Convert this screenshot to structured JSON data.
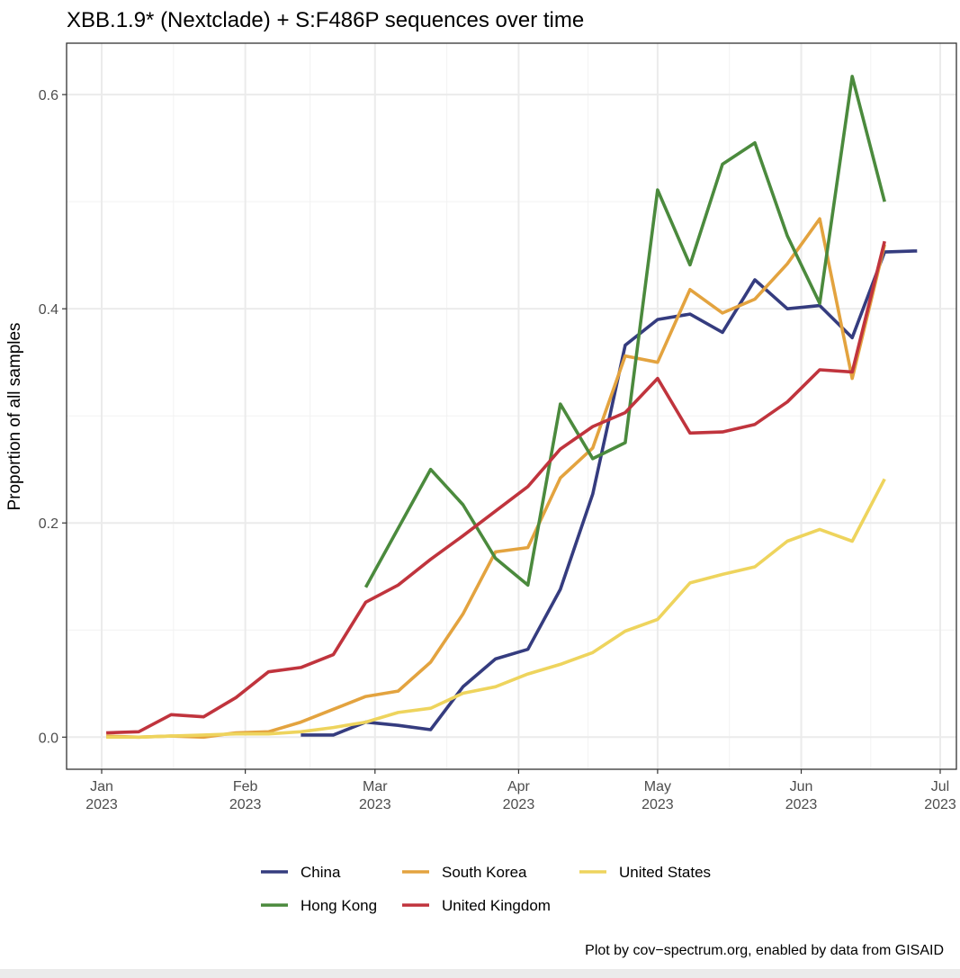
{
  "chart_data": {
    "type": "line",
    "title": "XBB.1.9* (Nextclade) + S:F486P sequences over time",
    "ylabel": "Proportion of all samples",
    "xlabel": "",
    "x_range": [
      "2023-01-01",
      "2023-07-01"
    ],
    "ylim": [
      -0.03,
      0.648
    ],
    "y_ticks": [
      0.0,
      0.2,
      0.4,
      0.6
    ],
    "y_tick_labels": [
      "0.0",
      "0.2",
      "0.4",
      "0.6"
    ],
    "x_ticks": [
      {
        "date": "2023-01-01",
        "month": "Jan",
        "year": "2023"
      },
      {
        "date": "2023-02-01",
        "month": "Feb",
        "year": "2023"
      },
      {
        "date": "2023-03-01",
        "month": "Mar",
        "year": "2023"
      },
      {
        "date": "2023-04-01",
        "month": "Apr",
        "year": "2023"
      },
      {
        "date": "2023-05-01",
        "month": "May",
        "year": "2023"
      },
      {
        "date": "2023-06-01",
        "month": "Jun",
        "year": "2023"
      },
      {
        "date": "2023-07-01",
        "month": "Jul",
        "year": "2023"
      }
    ],
    "grid": true,
    "legend_position": "bottom",
    "series": [
      {
        "name": "China",
        "color": "#353c7f",
        "points": [
          [
            "2023-02-13",
            0.002
          ],
          [
            "2023-02-20",
            0.002
          ],
          [
            "2023-02-27",
            0.014
          ],
          [
            "2023-03-06",
            0.011
          ],
          [
            "2023-03-13",
            0.007
          ],
          [
            "2023-03-20",
            0.047
          ],
          [
            "2023-03-27",
            0.073
          ],
          [
            "2023-04-03",
            0.082
          ],
          [
            "2023-04-10",
            0.138
          ],
          [
            "2023-04-17",
            0.227
          ],
          [
            "2023-04-24",
            0.366
          ],
          [
            "2023-05-01",
            0.39
          ],
          [
            "2023-05-08",
            0.395
          ],
          [
            "2023-05-15",
            0.378
          ],
          [
            "2023-05-22",
            0.427
          ],
          [
            "2023-05-29",
            0.4
          ],
          [
            "2023-06-05",
            0.403
          ],
          [
            "2023-06-12",
            0.373
          ],
          [
            "2023-06-19",
            0.453
          ],
          [
            "2023-06-26",
            0.454
          ]
        ]
      },
      {
        "name": "South Korea",
        "color": "#e3a33f",
        "points": [
          [
            "2023-01-02",
            0.001
          ],
          [
            "2023-01-09",
            0.0
          ],
          [
            "2023-01-16",
            0.001
          ],
          [
            "2023-01-23",
            0.0
          ],
          [
            "2023-01-30",
            0.004
          ],
          [
            "2023-02-06",
            0.005
          ],
          [
            "2023-02-13",
            0.014
          ],
          [
            "2023-02-20",
            0.026
          ],
          [
            "2023-02-27",
            0.038
          ],
          [
            "2023-03-06",
            0.043
          ],
          [
            "2023-03-13",
            0.07
          ],
          [
            "2023-03-20",
            0.115
          ],
          [
            "2023-03-27",
            0.173
          ],
          [
            "2023-04-03",
            0.177
          ],
          [
            "2023-04-10",
            0.242
          ],
          [
            "2023-04-17",
            0.27
          ],
          [
            "2023-04-24",
            0.356
          ],
          [
            "2023-05-01",
            0.35
          ],
          [
            "2023-05-08",
            0.418
          ],
          [
            "2023-05-15",
            0.396
          ],
          [
            "2023-05-22",
            0.409
          ],
          [
            "2023-05-29",
            0.442
          ],
          [
            "2023-06-05",
            0.484
          ],
          [
            "2023-06-12",
            0.335
          ],
          [
            "2023-06-19",
            0.46
          ]
        ]
      },
      {
        "name": "United States",
        "color": "#eed45d",
        "points": [
          [
            "2023-01-02",
            0.0
          ],
          [
            "2023-01-09",
            0.0
          ],
          [
            "2023-01-16",
            0.001
          ],
          [
            "2023-01-23",
            0.002
          ],
          [
            "2023-01-30",
            0.003
          ],
          [
            "2023-02-06",
            0.003
          ],
          [
            "2023-02-13",
            0.005
          ],
          [
            "2023-02-20",
            0.009
          ],
          [
            "2023-02-27",
            0.014
          ],
          [
            "2023-03-06",
            0.023
          ],
          [
            "2023-03-13",
            0.027
          ],
          [
            "2023-03-20",
            0.041
          ],
          [
            "2023-03-27",
            0.047
          ],
          [
            "2023-04-03",
            0.059
          ],
          [
            "2023-04-10",
            0.068
          ],
          [
            "2023-04-17",
            0.079
          ],
          [
            "2023-04-24",
            0.099
          ],
          [
            "2023-05-01",
            0.11
          ],
          [
            "2023-05-08",
            0.144
          ],
          [
            "2023-05-15",
            0.152
          ],
          [
            "2023-05-22",
            0.159
          ],
          [
            "2023-05-29",
            0.183
          ],
          [
            "2023-06-05",
            0.194
          ],
          [
            "2023-06-12",
            0.183
          ],
          [
            "2023-06-19",
            0.241
          ]
        ]
      },
      {
        "name": "Hong Kong",
        "color": "#4b8a3d",
        "points": [
          [
            "2023-02-27",
            0.14
          ],
          [
            "2023-03-13",
            0.25
          ],
          [
            "2023-03-20",
            0.217
          ],
          [
            "2023-03-27",
            0.167
          ],
          [
            "2023-04-03",
            0.142
          ],
          [
            "2023-04-10",
            0.311
          ],
          [
            "2023-04-17",
            0.26
          ],
          [
            "2023-04-24",
            0.275
          ],
          [
            "2023-05-01",
            0.511
          ],
          [
            "2023-05-08",
            0.441
          ],
          [
            "2023-05-15",
            0.535
          ],
          [
            "2023-05-22",
            0.555
          ],
          [
            "2023-05-29",
            0.468
          ],
          [
            "2023-06-05",
            0.405
          ],
          [
            "2023-06-12",
            0.617
          ],
          [
            "2023-06-19",
            0.5
          ]
        ]
      },
      {
        "name": "United Kingdom",
        "color": "#c0343d",
        "points": [
          [
            "2023-01-02",
            0.004
          ],
          [
            "2023-01-09",
            0.005
          ],
          [
            "2023-01-16",
            0.021
          ],
          [
            "2023-01-23",
            0.019
          ],
          [
            "2023-01-30",
            0.037
          ],
          [
            "2023-02-06",
            0.061
          ],
          [
            "2023-02-13",
            0.065
          ],
          [
            "2023-02-20",
            0.077
          ],
          [
            "2023-02-27",
            0.126
          ],
          [
            "2023-03-06",
            0.142
          ],
          [
            "2023-03-13",
            0.166
          ],
          [
            "2023-03-20",
            0.188
          ],
          [
            "2023-03-27",
            0.211
          ],
          [
            "2023-04-03",
            0.234
          ],
          [
            "2023-04-10",
            0.269
          ],
          [
            "2023-04-17",
            0.29
          ],
          [
            "2023-04-24",
            0.303
          ],
          [
            "2023-05-01",
            0.335
          ],
          [
            "2023-05-08",
            0.284
          ],
          [
            "2023-05-15",
            0.285
          ],
          [
            "2023-05-22",
            0.292
          ],
          [
            "2023-05-29",
            0.313
          ],
          [
            "2023-06-05",
            0.343
          ],
          [
            "2023-06-12",
            0.341
          ],
          [
            "2023-06-19",
            0.463
          ]
        ]
      }
    ],
    "legend_order": [
      "China",
      "Hong Kong",
      "South Korea",
      "United Kingdom",
      "United States"
    ],
    "caption": "Plot by cov−spectrum.org, enabled by data from GISAID"
  }
}
